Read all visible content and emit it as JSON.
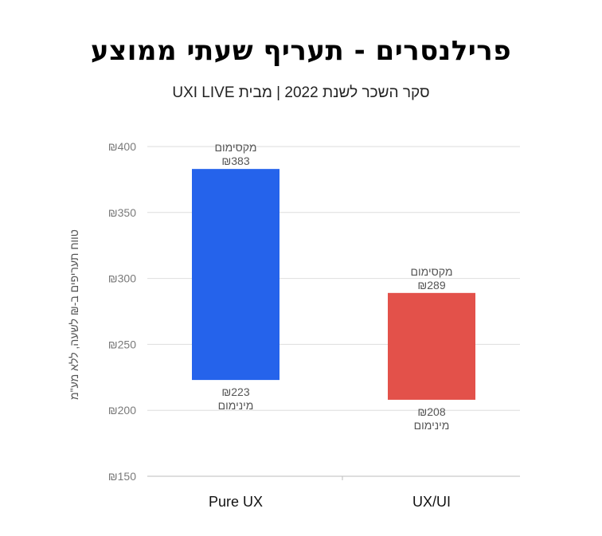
{
  "chart_data": {
    "type": "bar",
    "title": "פרילנסרים - תעריף שעתי ממוצע",
    "subtitle": "סקר השכר לשנת 2022 | מבית UXI LIVE",
    "ylabel": "טווח תעריפים ב-₪ לשעה, ללא מע\"מ",
    "xlabel": "",
    "ylim": [
      150,
      400
    ],
    "yticks": [
      150,
      200,
      250,
      300,
      350,
      400
    ],
    "ytick_labels": [
      "₪150",
      "₪200",
      "₪250",
      "₪300",
      "₪350",
      "₪400"
    ],
    "grid": true,
    "max_label": "מקסימום",
    "min_label": "מינימום",
    "categories": [
      "Pure UX",
      "UX/UI"
    ],
    "bars": [
      {
        "category": "Pure UX",
        "min": 223,
        "max": 383,
        "min_text": "₪223",
        "max_text": "₪383",
        "color": "#2563eb"
      },
      {
        "category": "UX/UI",
        "min": 208,
        "max": 289,
        "min_text": "₪208",
        "max_text": "₪289",
        "color": "#e3514a"
      }
    ]
  }
}
